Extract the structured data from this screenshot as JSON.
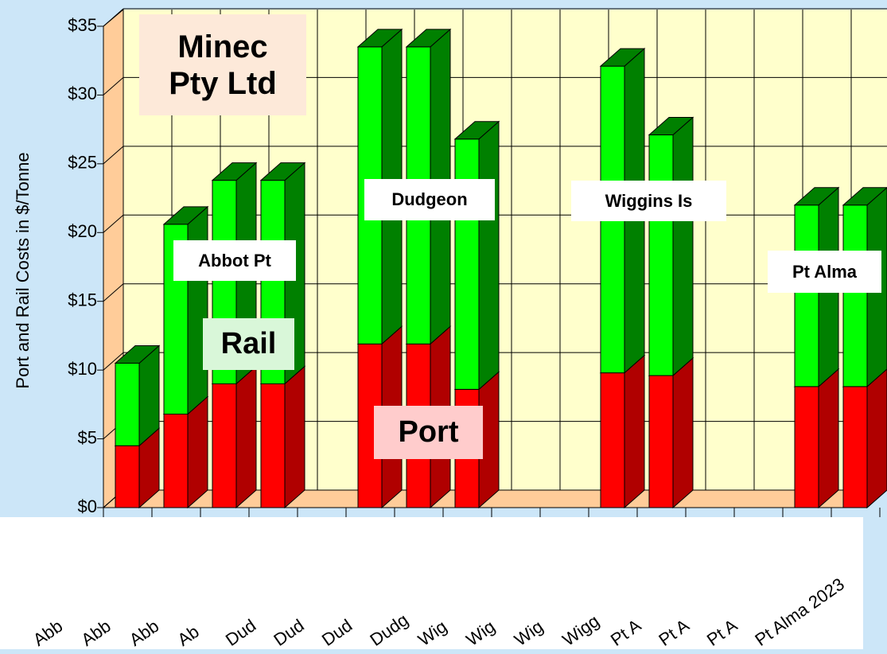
{
  "chart_data": {
    "type": "bar3d_stacked",
    "title": "Minec Pty Ltd",
    "y_label": "Port and Rail Costs in $/Tonne",
    "categories": [
      "Abb",
      "Abb",
      "Abb",
      "Ab",
      "Dud",
      "Dud",
      "Dud",
      "Dudg",
      "Wig",
      "Wig",
      "Wig",
      "Wigg",
      "Pt A",
      "Pt A",
      "Pt A",
      "Pt Alma 2023"
    ],
    "series": [
      {
        "name": "Port",
        "color": "#ff0000",
        "side_color": "#b00000",
        "values": [
          4.5,
          6.8,
          9,
          9,
          null,
          11.9,
          11.9,
          8.6,
          null,
          null,
          9.8,
          9.6,
          null,
          null,
          8.8,
          8.8
        ]
      },
      {
        "name": "Rail",
        "color": "#00ff00",
        "side_color": "#008000",
        "values": [
          6,
          13.8,
          14.8,
          14.8,
          null,
          21.6,
          21.6,
          18.2,
          null,
          null,
          22.3,
          17.5,
          null,
          null,
          13.2,
          13.2
        ]
      }
    ],
    "annotations": [
      "Abbot Pt",
      "Dudgeon",
      "Wiggins Is",
      "Pt Alma"
    ],
    "ylim": [
      0,
      35
    ],
    "yticks": [
      {
        "value": 0,
        "label": "$0"
      },
      {
        "value": 5,
        "label": "$5"
      },
      {
        "value": 10,
        "label": "$10"
      },
      {
        "value": 15,
        "label": "$15"
      },
      {
        "value": 20,
        "label": "$20"
      },
      {
        "value": 25,
        "label": "$25"
      },
      {
        "value": 30,
        "label": "$30"
      },
      {
        "value": 35,
        "label": "$35"
      }
    ],
    "grid": true
  }
}
